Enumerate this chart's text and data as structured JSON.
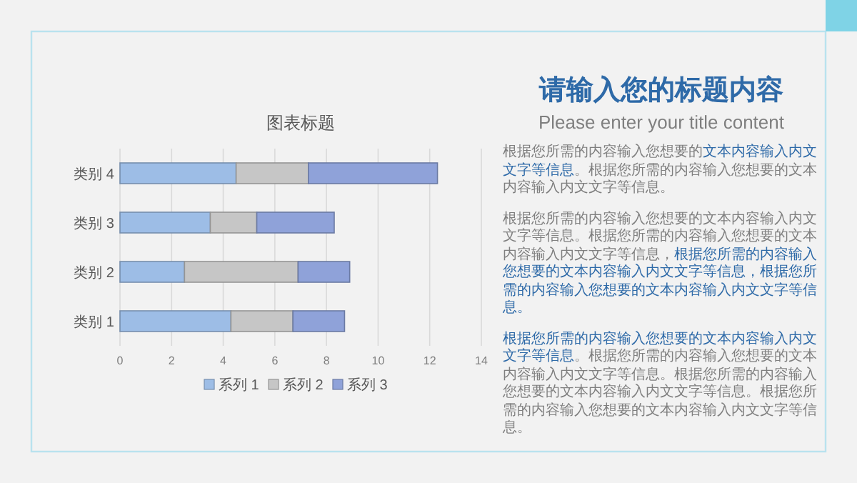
{
  "chart_data": [
    {
      "type": "bar",
      "orientation": "horizontal",
      "stacked": true,
      "title": "图表标题",
      "categories": [
        "类别 4",
        "类别 3",
        "类别 2",
        "类别 1"
      ],
      "series": [
        {
          "name": "系列 1",
          "color": "#9dbde6",
          "values": [
            4.5,
            3.5,
            2.5,
            4.3
          ]
        },
        {
          "name": "系列 2",
          "color": "#c6c6c6",
          "values": [
            2.8,
            1.8,
            4.4,
            2.4
          ]
        },
        {
          "name": "系列 3",
          "color": "#8fa2d9",
          "values": [
            5.0,
            3.0,
            2.0,
            2.0
          ]
        }
      ],
      "xlim": [
        0,
        14
      ],
      "xticks": [
        0,
        2,
        4,
        6,
        8,
        10,
        12,
        14
      ],
      "grid": "x",
      "legend": "bottom"
    },
    {
      "type": "other",
      "title": "请输入您的标题内容",
      "subtitle": "Please enter your title content",
      "annotations": [
        "根据您所需的内容输入您想要的",
        "文本内容输入内文文字等信息",
        "。根据您所需的内容输入您想要的文本内容输入内文文字等信息。"
      ],
      "colors": [
        "#7f7f7f",
        "#2e6aa8",
        "#7f7f7f"
      ]
    },
    {
      "type": "other",
      "annotations": [
        "根据您所需的内容输入您想要的文本内容输入内文文字等信息。根据您所需的内容输入您想要的文本内容输入内文文字等信息，",
        "根据您所需的内容输入您想要的文本内容输入内文文字等信息，根据您所需的内容输入您想要的文本内容输入内文文字等信息。"
      ],
      "colors": [
        "#7f7f7f",
        "#2e6aa8"
      ]
    },
    {
      "type": "other",
      "annotations": [
        "根据您所需的内容输入您想要的文本内容输入内文文字等信息",
        "。根据您所需的内容输入您想要的文本内容输入内文文字等信息。根据您所需的内容输入您想要的文本内容输入内文文字等信息。根据您所需的内容输入您想要的文本内容输入内文文字等信息。"
      ],
      "colors": [
        "#2e6aa8",
        "#7f7f7f"
      ]
    }
  ]
}
